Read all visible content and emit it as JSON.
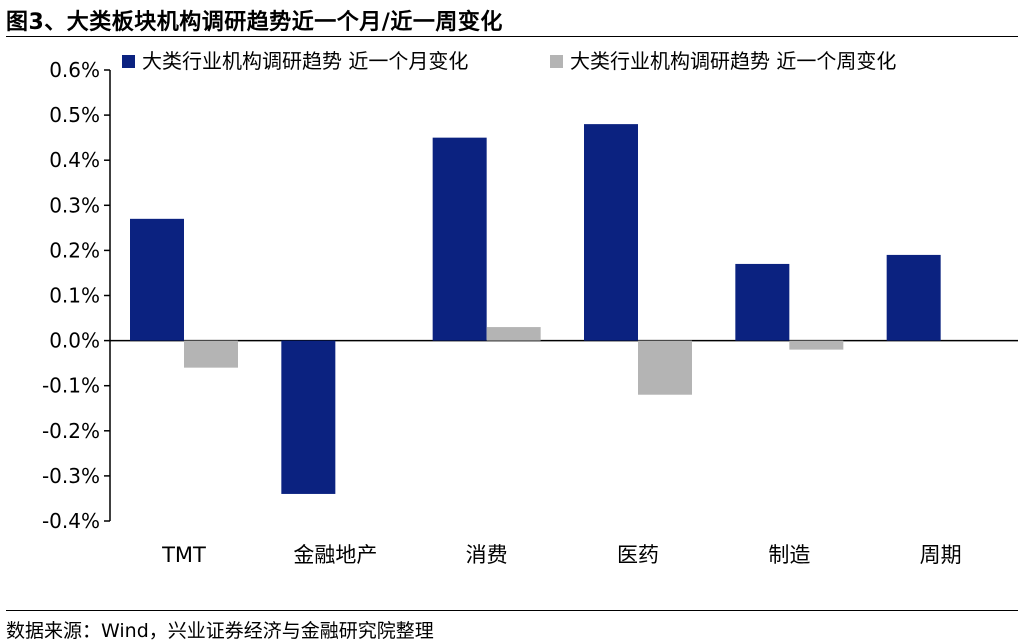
{
  "header": {
    "title": "图3、大类板块机构调研趋势近一个月/近一周变化"
  },
  "footer": {
    "source": "数据来源：Wind，兴业证券经济与金融研究院整理"
  },
  "chart_data": {
    "type": "bar",
    "categories": [
      "TMT",
      "金融地产",
      "消费",
      "医药",
      "制造",
      "周期"
    ],
    "series": [
      {
        "name": "大类行业机构调研趋势 近一个月变化",
        "color": "#0b2280",
        "values": [
          0.27,
          -0.34,
          0.45,
          0.48,
          0.17,
          0.19
        ]
      },
      {
        "name": "大类行业机构调研趋势 近一个周变化",
        "color": "#b4b4b4",
        "values": [
          -0.06,
          0.0,
          0.03,
          -0.12,
          -0.02,
          0.0
        ]
      }
    ],
    "ylim": [
      -0.4,
      0.6
    ],
    "yticks": [
      0.6,
      0.5,
      0.4,
      0.3,
      0.2,
      0.1,
      0.0,
      -0.1,
      -0.2,
      -0.3,
      -0.4
    ],
    "ytick_labels": [
      "0.6%",
      "0.5%",
      "0.4%",
      "0.3%",
      "0.2%",
      "0.1%",
      "0.0%",
      "-0.1%",
      "-0.2%",
      "-0.3%",
      "-0.4%"
    ],
    "legend_position": "top",
    "grid": false
  }
}
